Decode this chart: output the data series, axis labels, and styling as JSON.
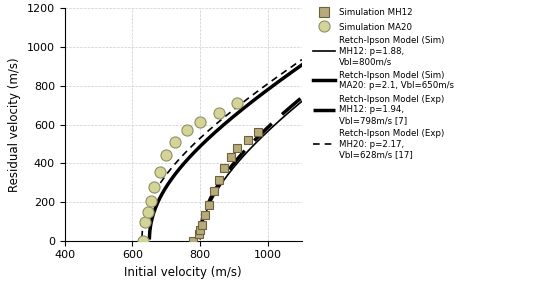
{
  "xlim": [
    400,
    1100
  ],
  "ylim": [
    0,
    1200
  ],
  "xticks": [
    400,
    600,
    800,
    1000
  ],
  "yticks": [
    0,
    200,
    400,
    600,
    800,
    1000,
    1200
  ],
  "xlabel": "Initial velocity (m/s)",
  "ylabel": "Residual velocity (m/s)",
  "marker_color_MH12": "#b5ac7a",
  "marker_color_MA20": "#d4d49a",
  "marker_edge_MH12": "#706040",
  "marker_edge_MA20": "#909060",
  "sim_MH12_x": [
    780,
    795,
    800,
    805,
    815,
    825,
    840,
    855,
    870,
    890,
    910,
    940,
    970
  ],
  "sim_MH12_y": [
    0,
    35,
    55,
    80,
    130,
    185,
    255,
    315,
    375,
    430,
    480,
    520,
    560
  ],
  "sim_MA20_x": [
    630,
    638,
    645,
    654,
    665,
    680,
    700,
    725,
    760,
    800,
    855,
    910
  ],
  "sim_MA20_y": [
    0,
    95,
    150,
    205,
    275,
    355,
    440,
    510,
    570,
    615,
    660,
    710
  ],
  "retch_sim_MH12_p": 1.88,
  "retch_sim_MH12_Vbl": 800,
  "retch_sim_MA20_p": 2.1,
  "retch_sim_MA20_Vbl": 650,
  "retch_exp_MH12_p": 1.94,
  "retch_exp_MH12_Vbl": 798,
  "retch_exp_MA20_p": 2.17,
  "retch_exp_MA20_Vbl": 628,
  "v_max": 1100,
  "figure_width": 5.39,
  "figure_height": 2.83,
  "dpi": 100,
  "legend_MH12_sim": "Simulation MH12",
  "legend_MA20_sim": "Simulation MA20",
  "legend_line1": "Retch-Ipson Model (Sim)\nMH12: p=1.88,\nVbl=800m/s",
  "legend_line2": "Retch-Ipson Model (Sim)\nMA20: p=2.1, Vbl=650m/s",
  "legend_line3": "Retch-Ipson Model (Exp)\nMH12: p=1.94,\nVbl=798m/s [7]",
  "legend_line4": "Retch-Ipson Model (Exp)\nMH20: p=2.17,\nVbl=628m/s [17]"
}
